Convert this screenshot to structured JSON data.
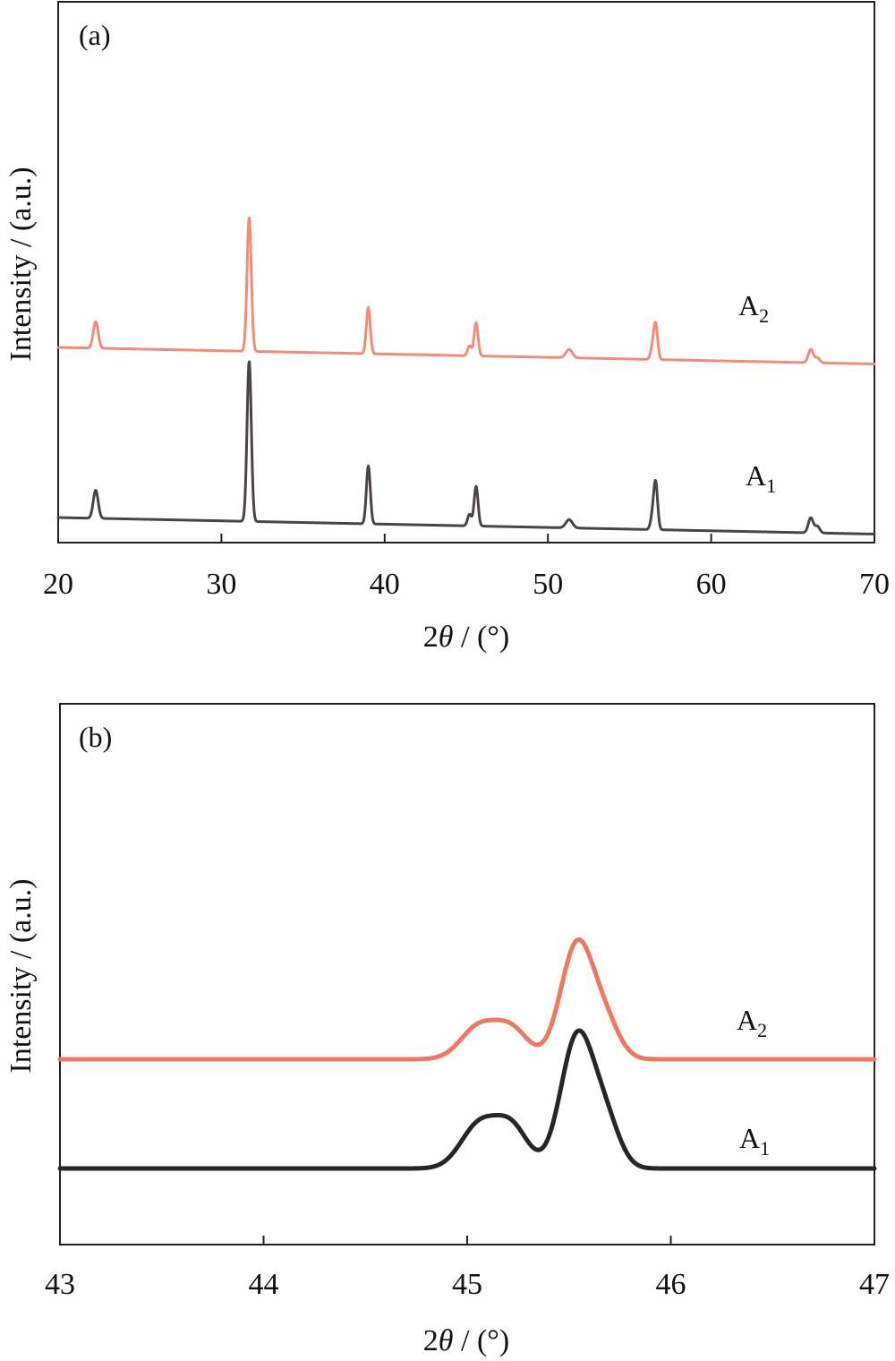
{
  "chart_data": [
    {
      "type": "line",
      "panel_label": "(a)",
      "xlabel_prefix": "2",
      "xlabel_theta": "θ",
      "xlabel_suffix": " / (°)",
      "ylabel": "Intensity / (a.u.)",
      "xlim": [
        20,
        70
      ],
      "xticks": [
        20,
        30,
        40,
        50,
        60,
        70
      ],
      "y_ticks_shown": false,
      "grid": false,
      "series": [
        {
          "name": "A2",
          "name_main": "A",
          "name_sub": "2",
          "color": "#F08C78",
          "offset": 1.0,
          "baseline_slope": -0.002,
          "peaks": [
            {
              "x": 22.3,
              "h": 0.16,
              "w": 0.15
            },
            {
              "x": 31.7,
              "h": 0.81,
              "w": 0.13
            },
            {
              "x": 39.0,
              "h": 0.28,
              "w": 0.12
            },
            {
              "x": 45.2,
              "h": 0.06,
              "w": 0.12
            },
            {
              "x": 45.6,
              "h": 0.2,
              "w": 0.12
            },
            {
              "x": 51.3,
              "h": 0.05,
              "w": 0.2
            },
            {
              "x": 56.4,
              "h": 0.06,
              "w": 0.12
            },
            {
              "x": 56.6,
              "h": 0.21,
              "w": 0.12
            },
            {
              "x": 66.1,
              "h": 0.08,
              "w": 0.15
            },
            {
              "x": 66.5,
              "h": 0.03,
              "w": 0.15
            }
          ]
        },
        {
          "name": "A1",
          "name_main": "A",
          "name_sub": "1",
          "color": "#4A4444",
          "offset": 0.0,
          "baseline_slope": -0.002,
          "peaks": [
            {
              "x": 22.3,
              "h": 0.17,
              "w": 0.15
            },
            {
              "x": 31.7,
              "h": 0.97,
              "w": 0.13
            },
            {
              "x": 39.0,
              "h": 0.35,
              "w": 0.12
            },
            {
              "x": 45.2,
              "h": 0.07,
              "w": 0.12
            },
            {
              "x": 45.6,
              "h": 0.24,
              "w": 0.12
            },
            {
              "x": 51.3,
              "h": 0.05,
              "w": 0.2
            },
            {
              "x": 56.4,
              "h": 0.07,
              "w": 0.12
            },
            {
              "x": 56.6,
              "h": 0.28,
              "w": 0.12
            },
            {
              "x": 66.1,
              "h": 0.09,
              "w": 0.15
            },
            {
              "x": 66.5,
              "h": 0.04,
              "w": 0.15
            }
          ]
        }
      ]
    },
    {
      "type": "line",
      "panel_label": "(b)",
      "xlabel_prefix": "2",
      "xlabel_theta": "θ",
      "xlabel_suffix": " / (°)",
      "ylabel": "Intensity / (a.u.)",
      "xlim": [
        43,
        47
      ],
      "xticks": [
        43,
        44,
        45,
        46,
        47
      ],
      "y_ticks_shown": false,
      "grid": false,
      "series": [
        {
          "name": "A2",
          "name_main": "A",
          "name_sub": "2",
          "color": "#F07860",
          "offset": 1.0,
          "baseline_slope": 0,
          "peaks": [
            {
              "x": 45.06,
              "h": 0.3,
              "w": 0.09
            },
            {
              "x": 45.22,
              "h": 0.26,
              "w": 0.08
            },
            {
              "x": 45.54,
              "h": 1.05,
              "w": 0.08
            },
            {
              "x": 45.68,
              "h": 0.3,
              "w": 0.07
            }
          ]
        },
        {
          "name": "A1",
          "name_main": "A",
          "name_sub": "1",
          "color": "#262626",
          "offset": 0.0,
          "baseline_slope": 0,
          "peaks": [
            {
              "x": 45.06,
              "h": 0.4,
              "w": 0.09
            },
            {
              "x": 45.22,
              "h": 0.36,
              "w": 0.08
            },
            {
              "x": 45.54,
              "h": 1.2,
              "w": 0.08
            },
            {
              "x": 45.68,
              "h": 0.4,
              "w": 0.07
            }
          ]
        }
      ]
    }
  ]
}
